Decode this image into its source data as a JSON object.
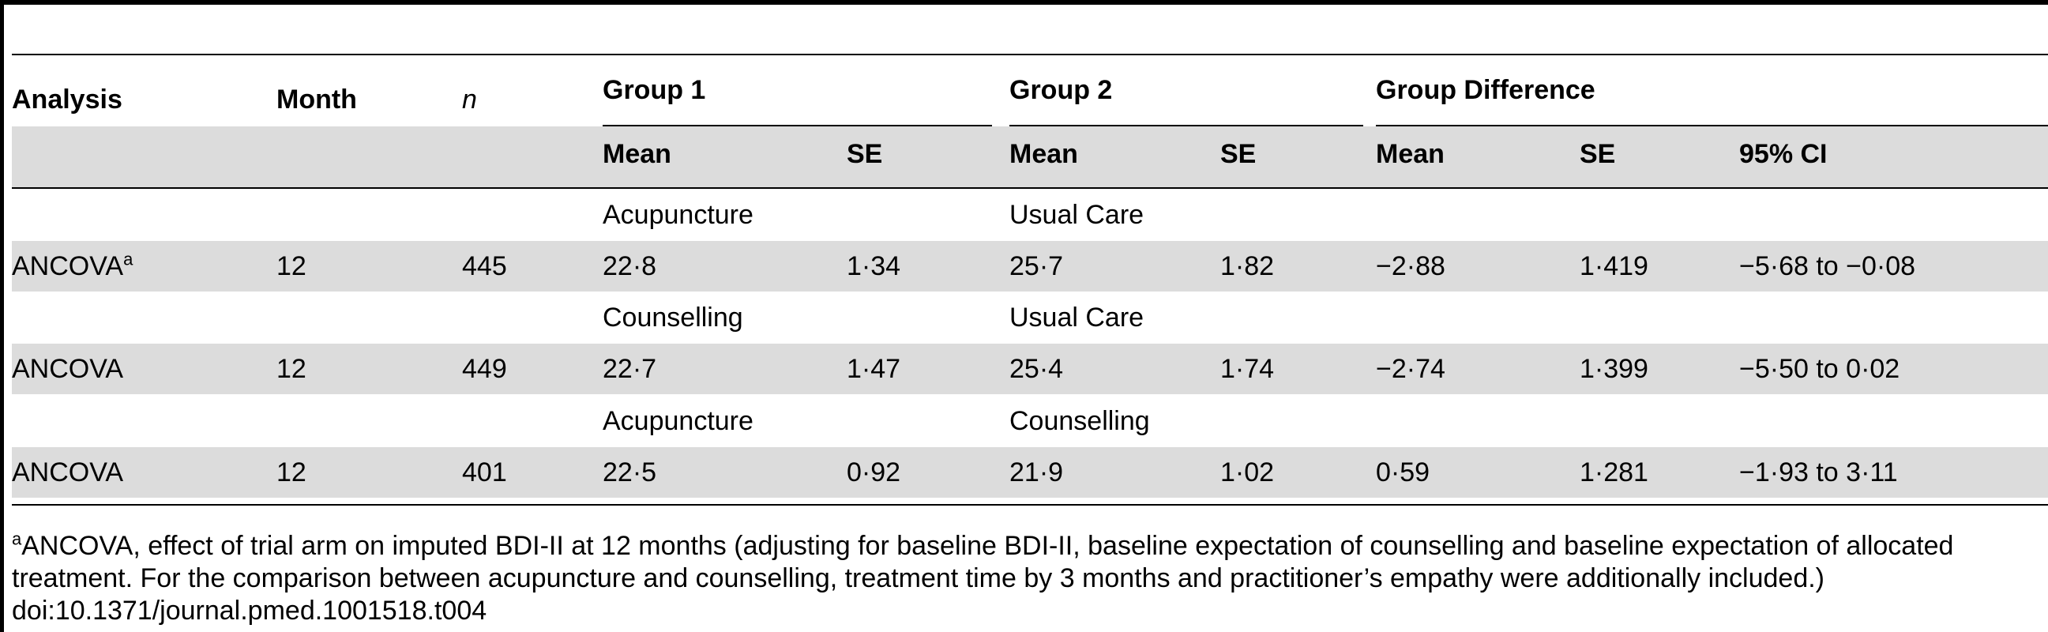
{
  "header": {
    "analysis": "Analysis",
    "month": "Month",
    "n": "n",
    "group1": "Group 1",
    "group2": "Group 2",
    "group_diff": "Group Difference",
    "mean": "Mean",
    "se": "SE",
    "ci": "95% CI"
  },
  "comparisons": [
    {
      "label_group1": "Acupuncture",
      "label_group2": "Usual Care",
      "row": {
        "analysis": "ANCOVA",
        "sup": "a",
        "month": "12",
        "n": "445",
        "g1_mean": "22·8",
        "g1_se": "1·34",
        "g2_mean": "25·7",
        "g2_se": "1·82",
        "diff_mean": "−2·88",
        "diff_se": "1·419",
        "ci": "−5·68 to −0·08"
      }
    },
    {
      "label_group1": "Counselling",
      "label_group2": "Usual Care",
      "row": {
        "analysis": "ANCOVA",
        "sup": "",
        "month": "12",
        "n": "449",
        "g1_mean": "22·7",
        "g1_se": "1·47",
        "g2_mean": "25·4",
        "g2_se": "1·74",
        "diff_mean": "−2·74",
        "diff_se": "1·399",
        "ci": "−5·50 to 0·02"
      }
    },
    {
      "label_group1": "Acupuncture",
      "label_group2": "Counselling",
      "row": {
        "analysis": "ANCOVA",
        "sup": "",
        "month": "12",
        "n": "401",
        "g1_mean": "22·5",
        "g1_se": "0·92",
        "g2_mean": "21·9",
        "g2_se": "1·02",
        "diff_mean": "0·59",
        "diff_se": "1·281",
        "ci": "−1·93 to 3·11"
      }
    }
  ],
  "footnote": {
    "marker": "a",
    "line1": "ANCOVA, effect of trial arm on imputed BDI-II at 12 months (adjusting for baseline BDI-II, baseline expectation of counselling and baseline expectation of allocated",
    "line2": "treatment. For the comparison between acupuncture and counselling, treatment time by 3 months and practitioner’s empathy were additionally included.)",
    "doi": "doi:10.1371/journal.pmed.1001518.t004"
  }
}
